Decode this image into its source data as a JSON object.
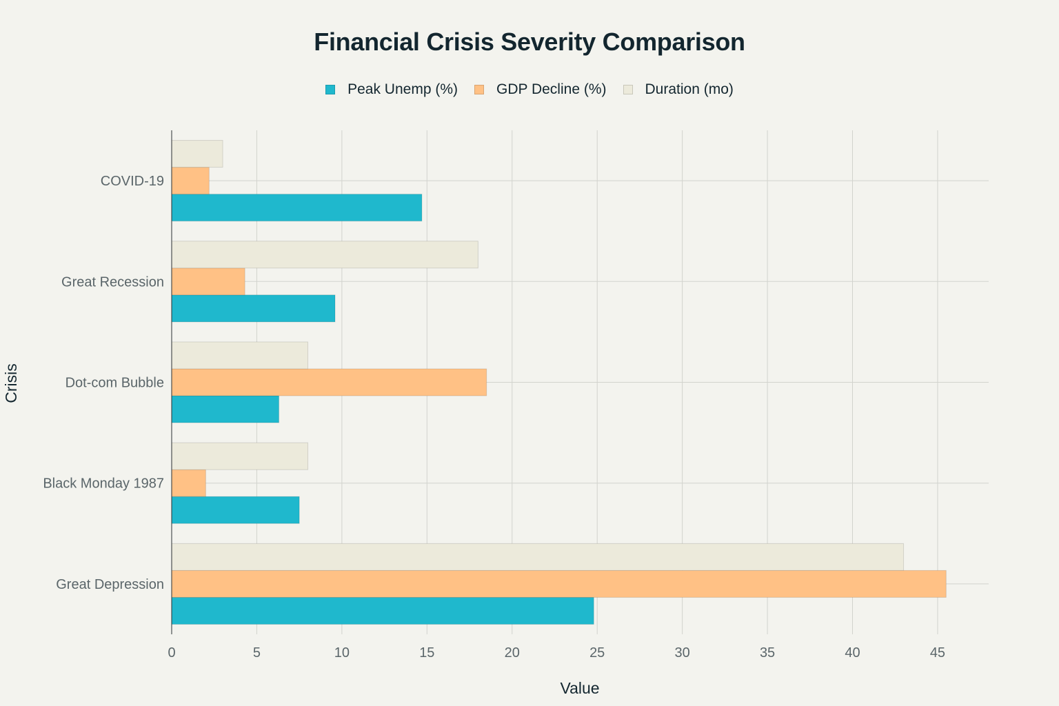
{
  "chart_data": {
    "type": "bar",
    "orientation": "horizontal",
    "title": "Financial Crisis Severity Comparison",
    "xlabel": "Value",
    "ylabel": "Crisis",
    "xlim": [
      0,
      48
    ],
    "xticks": [
      0,
      5,
      10,
      15,
      20,
      25,
      30,
      35,
      40,
      45
    ],
    "grid": true,
    "legend_position": "top-center",
    "categories": [
      "COVID-19",
      "Great Recession",
      "Dot-com Bubble",
      "Black Monday 1987",
      "Great Depression"
    ],
    "series": [
      {
        "name": "Peak Unemp (%)",
        "color": "#1fb8cd",
        "values": [
          14.7,
          9.6,
          6.3,
          7.5,
          24.8
        ]
      },
      {
        "name": "GDP Decline (%)",
        "color": "#ffc185",
        "values": [
          2.2,
          4.3,
          18.5,
          2.0,
          45.5
        ]
      },
      {
        "name": "Duration (mo)",
        "color": "#eceadb",
        "values": [
          3,
          18,
          8,
          8,
          43
        ]
      }
    ]
  }
}
